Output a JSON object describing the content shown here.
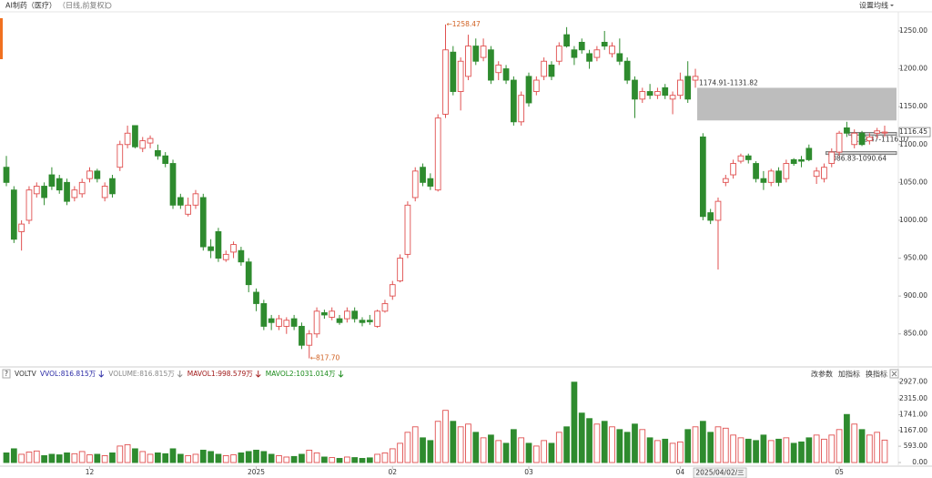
{
  "header": {
    "title": "AI制药（医疗）",
    "period": "（日线,前复权）",
    "ma_setting": "设置均线"
  },
  "volume_panel": {
    "name": "VOLTV",
    "indicators": [
      {
        "label": "VVOL:816.815万",
        "color": "#2a2aa5"
      },
      {
        "label": "VOLUME:816.815万",
        "color": "#888888"
      },
      {
        "label": "MAVOL1:998.579万",
        "color": "#a01818"
      },
      {
        "label": "MAVOL2:1031.014万",
        "color": "#1a8a1a"
      }
    ],
    "buttons": [
      "改参数",
      "加指标",
      "换指标"
    ]
  },
  "crosshair_date": "2025/04/02/三",
  "chart_data": {
    "type": "candlestick",
    "categories": [
      null,
      null,
      null,
      null,
      null,
      null,
      null,
      null,
      null,
      null,
      null,
      "12",
      null,
      null,
      null,
      null,
      null,
      null,
      null,
      null,
      null,
      null,
      null,
      null,
      null,
      null,
      null,
      null,
      null,
      null,
      null,
      null,
      null,
      "2025",
      null,
      null,
      null,
      null,
      null,
      null,
      null,
      null,
      null,
      null,
      null,
      null,
      null,
      null,
      null,
      null,
      null,
      "02",
      null,
      null,
      null,
      null,
      null,
      null,
      null,
      null,
      null,
      null,
      null,
      null,
      null,
      null,
      null,
      null,
      null,
      "03",
      null,
      null,
      null,
      null,
      null,
      null,
      null,
      null,
      null,
      null,
      null,
      null,
      null,
      null,
      null,
      null,
      null,
      null,
      null,
      "04",
      null,
      null,
      null,
      null,
      null,
      null,
      null,
      null,
      null,
      null,
      null,
      null,
      null,
      null,
      null,
      null,
      null,
      null,
      null,
      null,
      "05",
      null,
      null,
      null,
      null,
      null,
      null
    ],
    "open": [
      1070,
      1040,
      985,
      1000,
      1035,
      1045,
      1060,
      1055,
      1050,
      1030,
      1035,
      1055,
      1065,
      1030,
      1055,
      1070,
      1100,
      1125,
      1095,
      1102,
      1092,
      1085,
      1075,
      1030,
      1008,
      1020,
      1030,
      965,
      985,
      948,
      958,
      960,
      945,
      905,
      890,
      870,
      860,
      860,
      870,
      860,
      835,
      850,
      878,
      872,
      870,
      870,
      880,
      868,
      868,
      860,
      880,
      900,
      920,
      955,
      1030,
      1070,
      1055,
      1040,
      1140,
      1222,
      1170,
      1190,
      1230,
      1215,
      1225,
      1195,
      1200,
      1185,
      1130,
      1190,
      1170,
      1190,
      1205,
      1210,
      1245,
      1225,
      1235,
      1220,
      1215,
      1235,
      1220,
      1220,
      1210,
      1185,
      1160,
      1170,
      1165,
      1175,
      1160,
      1165,
      1190,
      1185,
      1110,
      1010,
      1000,
      1050,
      1060,
      1078,
      1085,
      1075,
      1055,
      1050,
      1065,
      1055,
      1080,
      1080,
      1095,
      1058,
      1055,
      1075,
      1090,
      1122,
      1100,
      1115,
      1105,
      1115,
      1116
    ],
    "high": [
      1085,
      1045,
      1000,
      1045,
      1050,
      1050,
      1070,
      1060,
      1055,
      1045,
      1055,
      1070,
      1068,
      1050,
      1060,
      1105,
      1125,
      1125,
      1110,
      1112,
      1100,
      1090,
      1080,
      1035,
      1030,
      1040,
      1035,
      975,
      990,
      960,
      972,
      965,
      950,
      910,
      895,
      875,
      875,
      872,
      875,
      865,
      855,
      885,
      882,
      885,
      875,
      885,
      885,
      872,
      875,
      882,
      895,
      920,
      955,
      1025,
      1070,
      1075,
      1062,
      1140,
      1258.47,
      1230,
      1215,
      1245,
      1240,
      1240,
      1230,
      1210,
      1205,
      1190,
      1170,
      1195,
      1190,
      1215,
      1210,
      1235,
      1255,
      1230,
      1240,
      1225,
      1230,
      1250,
      1235,
      1240,
      1215,
      1190,
      1175,
      1180,
      1175,
      1180,
      1170,
      1195,
      1210,
      1200,
      1115,
      1015,
      1030,
      1060,
      1080,
      1088,
      1088,
      1078,
      1065,
      1068,
      1070,
      1080,
      1082,
      1085,
      1100,
      1070,
      1075,
      1095,
      1118,
      1130,
      1120,
      1118,
      1115,
      1122,
      1125
    ],
    "low": [
      1045,
      970,
      960,
      995,
      1030,
      1020,
      1040,
      1035,
      1020,
      1025,
      1030,
      1050,
      1050,
      1025,
      1030,
      1065,
      1095,
      1095,
      1090,
      1095,
      1080,
      1070,
      1015,
      1015,
      1005,
      1015,
      960,
      950,
      945,
      945,
      950,
      940,
      905,
      880,
      855,
      855,
      855,
      850,
      855,
      830,
      817.7,
      845,
      870,
      868,
      862,
      865,
      865,
      860,
      862,
      858,
      878,
      895,
      918,
      950,
      1025,
      1045,
      1040,
      1038,
      1135,
      1165,
      1145,
      1185,
      1205,
      1210,
      1180,
      1185,
      1180,
      1125,
      1125,
      1150,
      1165,
      1185,
      1185,
      1205,
      1228,
      1205,
      1220,
      1200,
      1210,
      1225,
      1215,
      1205,
      1180,
      1135,
      1155,
      1160,
      1160,
      1160,
      1140,
      1160,
      1155,
      1175,
      1000,
      995,
      935,
      1045,
      1055,
      1075,
      1075,
      1050,
      1040,
      1045,
      1045,
      1050,
      1072,
      1070,
      1078,
      1048,
      1050,
      1070,
      1085,
      1110,
      1095,
      1098,
      1100,
      1108,
      1110
    ],
    "close": [
      1050,
      975,
      995,
      1040,
      1045,
      1030,
      1045,
      1040,
      1025,
      1040,
      1050,
      1065,
      1055,
      1045,
      1035,
      1100,
      1115,
      1097,
      1105,
      1108,
      1085,
      1075,
      1020,
      1020,
      1020,
      1035,
      965,
      960,
      950,
      955,
      968,
      945,
      915,
      890,
      860,
      865,
      870,
      868,
      860,
      835,
      850,
      880,
      875,
      880,
      865,
      880,
      870,
      865,
      866,
      880,
      890,
      915,
      950,
      1020,
      1065,
      1050,
      1045,
      1135,
      1225,
      1170,
      1210,
      1230,
      1210,
      1230,
      1185,
      1205,
      1185,
      1130,
      1165,
      1155,
      1185,
      1210,
      1190,
      1230,
      1230,
      1215,
      1225,
      1210,
      1225,
      1230,
      1230,
      1210,
      1185,
      1160,
      1170,
      1165,
      1170,
      1165,
      1165,
      1185,
      1160,
      1190,
      1005,
      1000,
      1025,
      1055,
      1075,
      1085,
      1080,
      1055,
      1050,
      1065,
      1050,
      1075,
      1075,
      1078,
      1080,
      1065,
      1070,
      1090,
      1115,
      1115,
      1115,
      1100,
      1110,
      1118,
      1116.45
    ],
    "up_color": "#e05050",
    "down_color": "#2e8b2e",
    "ylim": [
      810,
      1274
    ],
    "yticks": [
      {
        "value": 850,
        "label": "850.00"
      },
      {
        "value": 900,
        "label": "900.00"
      },
      {
        "value": 950,
        "label": "950.00"
      },
      {
        "value": 1000,
        "label": "1000.00"
      },
      {
        "value": 1050,
        "label": "1050.00"
      },
      {
        "value": 1100,
        "label": "1100.00"
      },
      {
        "value": 1150,
        "label": "1150.00"
      },
      {
        "value": 1200,
        "label": "1200.00"
      },
      {
        "value": 1250,
        "label": "1250.00"
      }
    ],
    "annotations": {
      "high": "←1258.47",
      "low": "←817.70"
    },
    "gaps": [
      {
        "label": "1174.91-1131.82",
        "high": 1174.91,
        "low": 1131.82
      },
      {
        "label": "1112.47-1116.07",
        "high": 1116.07,
        "low": 1112.47
      },
      {
        "label": "1086.83-1090.64",
        "high": 1090.64,
        "low": 1086.83
      }
    ],
    "volume": {
      "values": [
        350,
        500,
        300,
        380,
        420,
        250,
        300,
        280,
        350,
        320,
        400,
        280,
        300,
        250,
        350,
        600,
        650,
        500,
        400,
        300,
        350,
        320,
        500,
        300,
        250,
        300,
        450,
        400,
        300,
        250,
        280,
        350,
        400,
        450,
        400,
        300,
        250,
        200,
        220,
        300,
        450,
        350,
        200,
        180,
        150,
        200,
        180,
        150,
        170,
        300,
        350,
        500,
        700,
        1100,
        1300,
        900,
        800,
        1500,
        1900,
        1500,
        1300,
        1400,
        1100,
        900,
        1000,
        800,
        700,
        1200,
        900,
        700,
        600,
        800,
        700,
        1100,
        1300,
        2927,
        1800,
        1600,
        1400,
        1500,
        1300,
        1200,
        1100,
        1400,
        1200,
        900,
        800,
        850,
        700,
        750,
        1200,
        1300,
        1500,
        1100,
        1300,
        1250,
        1000,
        900,
        850,
        800,
        1000,
        800,
        850,
        900,
        700,
        750,
        900,
        1000,
        850,
        1000,
        1200,
        1750,
        1400,
        1200,
        1000,
        1100,
        816.815
      ],
      "ylim": [
        0,
        3150
      ],
      "yticks": [
        {
          "value": 0,
          "label": "0.00"
        },
        {
          "value": 593,
          "label": "593.00"
        },
        {
          "value": 1167,
          "label": "1167.00"
        },
        {
          "value": 1741,
          "label": "1741.00"
        },
        {
          "value": 2315,
          "label": "2315.00"
        },
        {
          "value": 2927,
          "label": "2927.00"
        }
      ]
    }
  }
}
